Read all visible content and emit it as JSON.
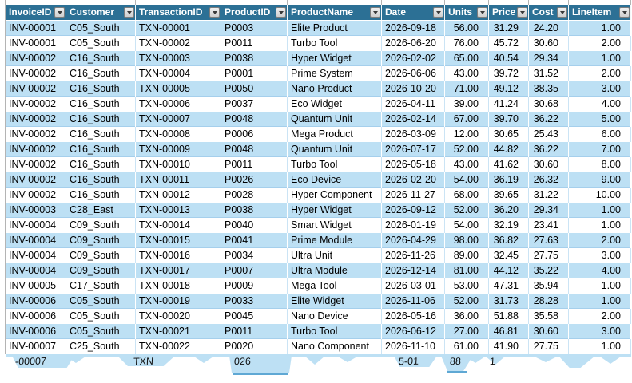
{
  "app": {
    "description": "Spreadsheet table view with filtered columns"
  },
  "colors": {
    "header_bg": "#2C7095",
    "header_text": "#FFFFFF",
    "band_blue": "#BDE0F4",
    "band_white": "#FFFFFF",
    "gridline": "#B4B4B4"
  },
  "table": {
    "columns": [
      {
        "label": "InvoiceID"
      },
      {
        "label": "Customer"
      },
      {
        "label": "TransactionID"
      },
      {
        "label": "ProductID"
      },
      {
        "label": "ProductName"
      },
      {
        "label": "Date"
      },
      {
        "label": "Units"
      },
      {
        "label": "Price"
      },
      {
        "label": "Cost"
      },
      {
        "label": "LineItem"
      }
    ],
    "rows": [
      [
        "INV-00001",
        "C05_South",
        "TXN-00001",
        "P0003",
        "Elite Product",
        "2026-09-18",
        "56.00",
        "31.29",
        "24.20",
        "1.00"
      ],
      [
        "INV-00001",
        "C05_South",
        "TXN-00002",
        "P0011",
        "Turbo Tool",
        "2026-06-20",
        "76.00",
        "45.72",
        "30.60",
        "2.00"
      ],
      [
        "INV-00002",
        "C16_South",
        "TXN-00003",
        "P0038",
        "Hyper Widget",
        "2026-02-02",
        "65.00",
        "40.54",
        "29.34",
        "1.00"
      ],
      [
        "INV-00002",
        "C16_South",
        "TXN-00004",
        "P0001",
        "Prime System",
        "2026-06-06",
        "43.00",
        "39.72",
        "31.52",
        "2.00"
      ],
      [
        "INV-00002",
        "C16_South",
        "TXN-00005",
        "P0050",
        "Nano Product",
        "2026-10-20",
        "71.00",
        "49.12",
        "38.35",
        "3.00"
      ],
      [
        "INV-00002",
        "C16_South",
        "TXN-00006",
        "P0037",
        "Eco Widget",
        "2026-04-11",
        "39.00",
        "41.24",
        "30.68",
        "4.00"
      ],
      [
        "INV-00002",
        "C16_South",
        "TXN-00007",
        "P0048",
        "Quantum Unit",
        "2026-02-14",
        "67.00",
        "39.70",
        "36.22",
        "5.00"
      ],
      [
        "INV-00002",
        "C16_South",
        "TXN-00008",
        "P0006",
        "Mega Product",
        "2026-03-09",
        "12.00",
        "30.65",
        "25.43",
        "6.00"
      ],
      [
        "INV-00002",
        "C16_South",
        "TXN-00009",
        "P0048",
        "Quantum Unit",
        "2026-07-17",
        "52.00",
        "44.82",
        "36.22",
        "7.00"
      ],
      [
        "INV-00002",
        "C16_South",
        "TXN-00010",
        "P0011",
        "Turbo Tool",
        "2026-05-18",
        "43.00",
        "41.62",
        "30.60",
        "8.00"
      ],
      [
        "INV-00002",
        "C16_South",
        "TXN-00011",
        "P0026",
        "Eco Device",
        "2026-02-20",
        "54.00",
        "36.19",
        "26.32",
        "9.00"
      ],
      [
        "INV-00002",
        "C16_South",
        "TXN-00012",
        "P0028",
        "Hyper Component",
        "2026-11-27",
        "68.00",
        "39.65",
        "31.22",
        "10.00"
      ],
      [
        "INV-00003",
        "C28_East",
        "TXN-00013",
        "P0038",
        "Hyper Widget",
        "2026-09-12",
        "52.00",
        "36.20",
        "29.34",
        "1.00"
      ],
      [
        "INV-00004",
        "C09_South",
        "TXN-00014",
        "P0040",
        "Smart Widget",
        "2026-01-19",
        "54.00",
        "32.19",
        "23.41",
        "1.00"
      ],
      [
        "INV-00004",
        "C09_South",
        "TXN-00015",
        "P0041",
        "Prime Module",
        "2026-04-29",
        "98.00",
        "36.82",
        "27.63",
        "2.00"
      ],
      [
        "INV-00004",
        "C09_South",
        "TXN-00016",
        "P0034",
        "Ultra Unit",
        "2026-11-26",
        "89.00",
        "32.45",
        "27.75",
        "3.00"
      ],
      [
        "INV-00004",
        "C09_South",
        "TXN-00017",
        "P0007",
        "Ultra Module",
        "2026-12-14",
        "81.00",
        "44.12",
        "35.22",
        "4.00"
      ],
      [
        "INV-00005",
        "C17_South",
        "TXN-00018",
        "P0009",
        "Mega Tool",
        "2026-03-01",
        "53.00",
        "47.31",
        "35.94",
        "1.00"
      ],
      [
        "INV-00006",
        "C05_South",
        "TXN-00019",
        "P0033",
        "Elite Widget",
        "2026-11-06",
        "52.00",
        "31.73",
        "28.28",
        "1.00"
      ],
      [
        "INV-00006",
        "C05_South",
        "TXN-00020",
        "P0045",
        "Nano Device",
        "2026-05-16",
        "36.00",
        "51.88",
        "35.58",
        "2.00"
      ],
      [
        "INV-00006",
        "C05_South",
        "TXN-00021",
        "P0011",
        "Turbo Tool",
        "2026-06-12",
        "27.00",
        "46.81",
        "30.60",
        "3.00"
      ],
      [
        "INV-00007",
        "C25_South",
        "TXN-00022",
        "P0020",
        "Nano Component",
        "2026-11-10",
        "61.00",
        "41.90",
        "27.75",
        "1.00"
      ]
    ]
  },
  "torn": {
    "fragments": [
      "-00007",
      "TXN",
      "026",
      "5-01",
      "88",
      "1"
    ]
  }
}
